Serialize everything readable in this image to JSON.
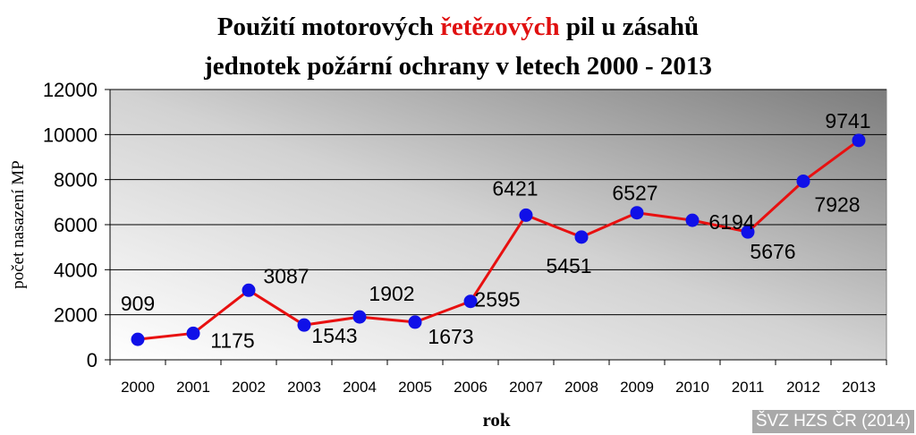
{
  "title": {
    "line1_part1": "Použití motorových ",
    "line1_highlight": "řetězových",
    "line1_part2": " pil u zásahů",
    "line2": "jednotek požární ochrany v letech 2000 - 2013"
  },
  "credit": "ŠVZ HZS ČR (2014)",
  "colors": {
    "line": "#e81010",
    "marker": "#1010e8",
    "highlight": "#e01010"
  },
  "chart_data": {
    "type": "line",
    "title": "Použití motorových řetězových pil u zásahů jednotek požární ochrany v letech 2000 - 2013",
    "xlabel": "rok",
    "ylabel": "počet nasazení MP",
    "ylim": [
      0,
      12000
    ],
    "yticks": [
      0,
      2000,
      4000,
      6000,
      8000,
      10000,
      12000
    ],
    "grid": true,
    "categories": [
      "2000",
      "2001",
      "2002",
      "2003",
      "2004",
      "2005",
      "2006",
      "2007",
      "2008",
      "2009",
      "2010",
      "2011",
      "2012",
      "2013"
    ],
    "values": [
      909,
      1175,
      3087,
      1543,
      1902,
      1673,
      2595,
      6421,
      5451,
      6527,
      6194,
      5676,
      7928,
      9741
    ],
    "data_labels": [
      "909",
      "1175",
      "3087",
      "1543",
      "1902",
      "1673",
      "2595",
      "6421",
      "5451",
      "6527",
      "6194",
      "5676",
      "7928",
      "9741"
    ]
  }
}
